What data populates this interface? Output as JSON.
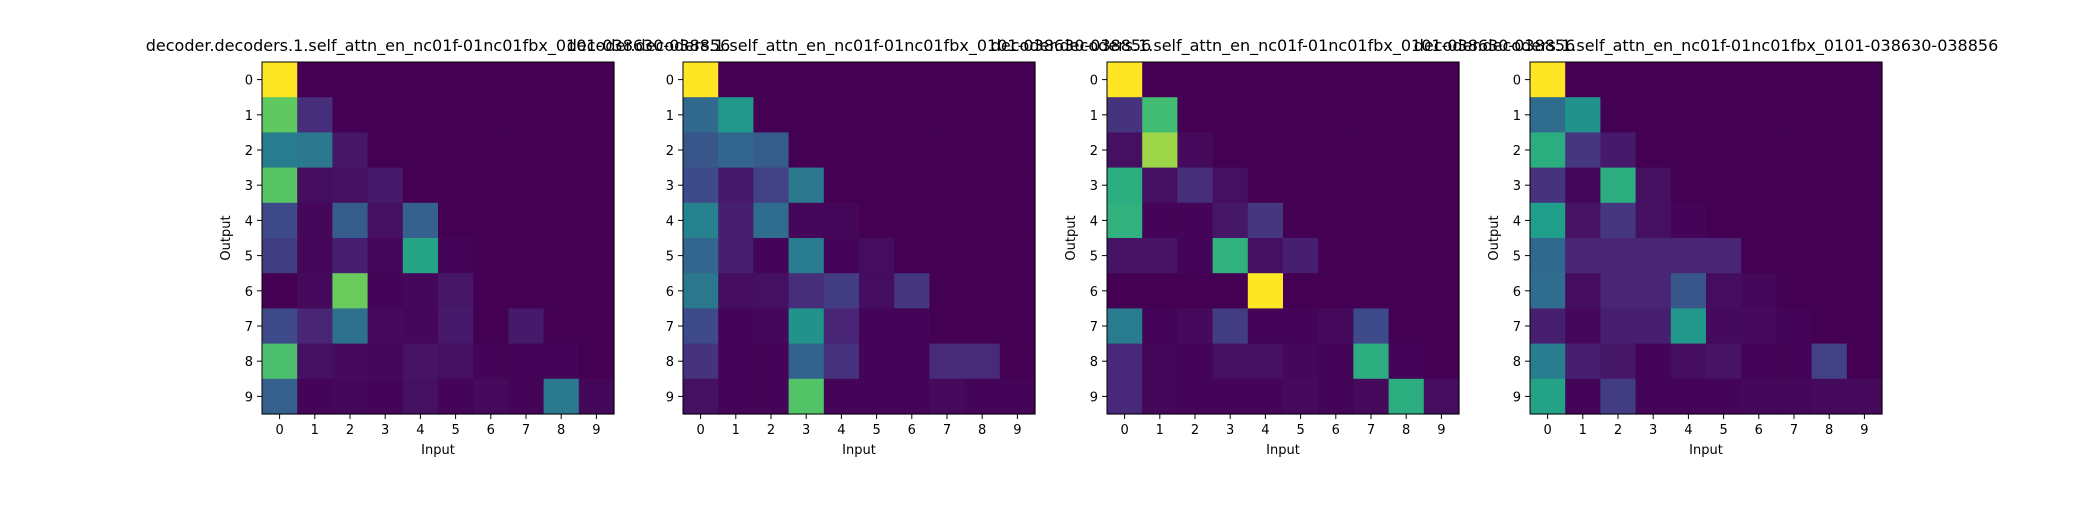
{
  "chart_data": [
    {
      "type": "heatmap",
      "title": "decoder.decoders.1.self_attn_en_nc01f-01nc01fbx_0101-038630-038856",
      "xlabel": "Input",
      "ylabel": "Output",
      "x_ticks": [
        "0",
        "1",
        "2",
        "3",
        "4",
        "5",
        "6",
        "7",
        "8",
        "9"
      ],
      "y_ticks": [
        "0",
        "1",
        "2",
        "3",
        "4",
        "5",
        "6",
        "7",
        "8",
        "9"
      ],
      "colormap": "viridis",
      "vrange": [
        0,
        1
      ],
      "values": [
        [
          1.0,
          0,
          0,
          0,
          0,
          0,
          0,
          0,
          0,
          0
        ],
        [
          0.85,
          0.15,
          0,
          0,
          0,
          0,
          0,
          0,
          0,
          0
        ],
        [
          0.48,
          0.45,
          0.07,
          0,
          0,
          0,
          0,
          0,
          0,
          0
        ],
        [
          0.83,
          0.04,
          0.05,
          0.08,
          0,
          0,
          0,
          0,
          0,
          0
        ],
        [
          0.25,
          0.02,
          0.33,
          0.05,
          0.35,
          0,
          0,
          0,
          0,
          0
        ],
        [
          0.2,
          0.02,
          0.1,
          0.02,
          0.66,
          0.01,
          0,
          0,
          0,
          0
        ],
        [
          0.0,
          0.03,
          0.87,
          0.01,
          0.02,
          0.07,
          0.0,
          0,
          0,
          0
        ],
        [
          0.25,
          0.12,
          0.42,
          0.03,
          0.02,
          0.08,
          0.0,
          0.08,
          0,
          0
        ],
        [
          0.8,
          0.05,
          0.03,
          0.02,
          0.06,
          0.05,
          0.01,
          0.01,
          0.01,
          0
        ],
        [
          0.34,
          0.01,
          0.02,
          0.01,
          0.05,
          0.01,
          0.03,
          0.01,
          0.46,
          0.02
        ]
      ]
    },
    {
      "type": "heatmap",
      "title": "decoder.decoders.1.self_attn_en_nc01f-01nc01fbx_0101-038630-038856",
      "xlabel": "Input",
      "ylabel": "",
      "x_ticks": [
        "0",
        "1",
        "2",
        "3",
        "4",
        "5",
        "6",
        "7",
        "8",
        "9"
      ],
      "y_ticks": [
        "0",
        "1",
        "2",
        "3",
        "4",
        "5",
        "6",
        "7",
        "8",
        "9"
      ],
      "colormap": "viridis",
      "vrange": [
        0,
        1
      ],
      "values": [
        [
          1.0,
          0,
          0,
          0,
          0,
          0,
          0,
          0,
          0,
          0
        ],
        [
          0.38,
          0.6,
          0,
          0,
          0,
          0,
          0,
          0,
          0,
          0
        ],
        [
          0.3,
          0.37,
          0.33,
          0,
          0,
          0,
          0,
          0,
          0,
          0
        ],
        [
          0.25,
          0.08,
          0.22,
          0.45,
          0,
          0,
          0,
          0,
          0,
          0
        ],
        [
          0.5,
          0.1,
          0.4,
          0.02,
          0.02,
          0,
          0,
          0,
          0,
          0
        ],
        [
          0.37,
          0.1,
          0.01,
          0.47,
          0.01,
          0.04,
          0,
          0,
          0,
          0
        ],
        [
          0.45,
          0.04,
          0.05,
          0.15,
          0.2,
          0.04,
          0.18,
          0,
          0,
          0
        ],
        [
          0.25,
          0.01,
          0.02,
          0.58,
          0.12,
          0.01,
          0.01,
          0.0,
          0,
          0
        ],
        [
          0.17,
          0.01,
          0.01,
          0.36,
          0.16,
          0.01,
          0.01,
          0.14,
          0.14,
          0
        ],
        [
          0.05,
          0.01,
          0.01,
          0.82,
          0.01,
          0.01,
          0.01,
          0.03,
          0.01,
          0.01
        ]
      ]
    },
    {
      "type": "heatmap",
      "title": "decoder.decoders.1.self_attn_en_nc01f-01nc01fbx_0101-038630-038856",
      "xlabel": "Input",
      "ylabel": "Output",
      "x_ticks": [
        "0",
        "1",
        "2",
        "3",
        "4",
        "5",
        "6",
        "7",
        "8",
        "9"
      ],
      "y_ticks": [
        "0",
        "1",
        "2",
        "3",
        "4",
        "5",
        "6",
        "7",
        "8",
        "9"
      ],
      "colormap": "viridis",
      "vrange": [
        0,
        1
      ],
      "values": [
        [
          1.0,
          0,
          0,
          0,
          0,
          0,
          0,
          0,
          0,
          0
        ],
        [
          0.17,
          0.78,
          0,
          0,
          0,
          0,
          0,
          0,
          0,
          0
        ],
        [
          0.05,
          0.92,
          0.03,
          0,
          0,
          0,
          0,
          0,
          0,
          0
        ],
        [
          0.7,
          0.05,
          0.15,
          0.05,
          0,
          0,
          0,
          0,
          0,
          0
        ],
        [
          0.72,
          0.01,
          0.01,
          0.07,
          0.18,
          0,
          0,
          0,
          0,
          0
        ],
        [
          0.06,
          0.06,
          0.01,
          0.72,
          0.05,
          0.1,
          0,
          0,
          0,
          0
        ],
        [
          0.0,
          0.0,
          0.0,
          0.0,
          1.0,
          0.0,
          0.0,
          0,
          0,
          0
        ],
        [
          0.47,
          0.01,
          0.03,
          0.2,
          0.01,
          0.01,
          0.03,
          0.25,
          0,
          0
        ],
        [
          0.13,
          0.02,
          0.01,
          0.05,
          0.05,
          0.02,
          0.01,
          0.7,
          0.01,
          0
        ],
        [
          0.13,
          0.02,
          0.01,
          0.01,
          0.01,
          0.03,
          0.01,
          0.03,
          0.7,
          0.04
        ]
      ]
    },
    {
      "type": "heatmap",
      "title": "decoder.decoders.1.self_attn_en_nc01f-01nc01fbx_0101-038630-038856",
      "xlabel": "Input",
      "ylabel": "Output",
      "x_ticks": [
        "0",
        "1",
        "2",
        "3",
        "4",
        "5",
        "6",
        "7",
        "8",
        "9"
      ],
      "y_ticks": [
        "0",
        "1",
        "2",
        "3",
        "4",
        "5",
        "6",
        "7",
        "8",
        "9"
      ],
      "colormap": "viridis",
      "vrange": [
        0,
        1
      ],
      "values": [
        [
          1.0,
          0,
          0,
          0,
          0,
          0,
          0,
          0,
          0,
          0
        ],
        [
          0.4,
          0.58,
          0,
          0,
          0,
          0,
          0,
          0,
          0,
          0
        ],
        [
          0.7,
          0.18,
          0.08,
          0,
          0,
          0,
          0,
          0,
          0,
          0
        ],
        [
          0.17,
          0.02,
          0.7,
          0.05,
          0,
          0,
          0,
          0,
          0,
          0
        ],
        [
          0.63,
          0.06,
          0.18,
          0.05,
          0.01,
          0,
          0,
          0,
          0,
          0
        ],
        [
          0.38,
          0.12,
          0.12,
          0.12,
          0.12,
          0.12,
          0,
          0,
          0,
          0
        ],
        [
          0.4,
          0.04,
          0.12,
          0.12,
          0.3,
          0.04,
          0.02,
          0,
          0,
          0
        ],
        [
          0.1,
          0.02,
          0.1,
          0.1,
          0.6,
          0.03,
          0.03,
          0.01,
          0,
          0
        ],
        [
          0.48,
          0.1,
          0.07,
          0.01,
          0.04,
          0.06,
          0.01,
          0.01,
          0.22,
          0
        ],
        [
          0.65,
          0.01,
          0.2,
          0.01,
          0.01,
          0.01,
          0.02,
          0.02,
          0.03,
          0.03
        ]
      ]
    }
  ]
}
